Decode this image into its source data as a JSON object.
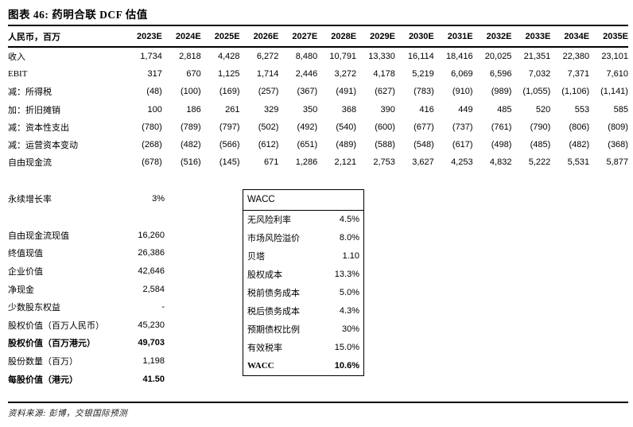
{
  "title": "图表 46: 药明合联 DCF 估值",
  "table": {
    "unit_label": "人民币，百万",
    "years": [
      "2023E",
      "2024E",
      "2025E",
      "2026E",
      "2027E",
      "2028E",
      "2029E",
      "2030E",
      "2031E",
      "2032E",
      "2033E",
      "2034E",
      "2035E"
    ],
    "rows": [
      {
        "label": "收入",
        "values": [
          "1,734",
          "2,818",
          "4,428",
          "6,272",
          "8,480",
          "10,791",
          "13,330",
          "16,114",
          "18,416",
          "20,025",
          "21,351",
          "22,380",
          "23,101"
        ]
      },
      {
        "label": "EBIT",
        "values": [
          "317",
          "670",
          "1,125",
          "1,714",
          "2,446",
          "3,272",
          "4,178",
          "5,219",
          "6,069",
          "6,596",
          "7,032",
          "7,371",
          "7,610"
        ]
      },
      {
        "label": "减：所得税",
        "values": [
          "(48)",
          "(100)",
          "(169)",
          "(257)",
          "(367)",
          "(491)",
          "(627)",
          "(783)",
          "(910)",
          "(989)",
          "(1,055)",
          "(1,106)",
          "(1,141)"
        ]
      },
      {
        "label": "加：折旧摊销",
        "values": [
          "100",
          "186",
          "261",
          "329",
          "350",
          "368",
          "390",
          "416",
          "449",
          "485",
          "520",
          "553",
          "585"
        ]
      },
      {
        "label": "减：资本性支出",
        "values": [
          "(780)",
          "(789)",
          "(797)",
          "(502)",
          "(492)",
          "(540)",
          "(600)",
          "(677)",
          "(737)",
          "(761)",
          "(790)",
          "(806)",
          "(809)"
        ]
      },
      {
        "label": "减：运营资本变动",
        "values": [
          "(268)",
          "(482)",
          "(566)",
          "(612)",
          "(651)",
          "(489)",
          "(588)",
          "(548)",
          "(617)",
          "(498)",
          "(485)",
          "(482)",
          "(368)"
        ]
      },
      {
        "label": "自由现金流",
        "values": [
          "(678)",
          "(516)",
          "(145)",
          "671",
          "1,286",
          "2,121",
          "2,753",
          "3,627",
          "4,253",
          "4,832",
          "5,222",
          "5,531",
          "5,877"
        ]
      }
    ]
  },
  "summary": {
    "growth": {
      "label": "永续增长率",
      "value": "3%"
    },
    "rows": [
      {
        "label": "自由现金流现值",
        "value": "16,260",
        "bold": false
      },
      {
        "label": "终值现值",
        "value": "26,386",
        "bold": false
      },
      {
        "label": "企业价值",
        "value": "42,646",
        "bold": false
      },
      {
        "label": "净现金",
        "value": "2,584",
        "bold": false
      },
      {
        "label": "少数股东权益",
        "value": "-",
        "bold": false
      },
      {
        "label": "股权价值（百万人民币）",
        "value": "45,230",
        "bold": false
      },
      {
        "label": "股权价值（百万港元）",
        "value": "49,703",
        "bold": true
      },
      {
        "label": "股份数量（百万）",
        "value": "1,198",
        "bold": false
      },
      {
        "label": "每股价值（港元）",
        "value": "41.50",
        "bold": true
      }
    ]
  },
  "wacc_box": {
    "header": "WACC",
    "rows": [
      {
        "label": "无风险利率",
        "value": "4.5%",
        "bold": false
      },
      {
        "label": "市场风险溢价",
        "value": "8.0%",
        "bold": false
      },
      {
        "label": "贝塔",
        "value": "1.10",
        "bold": false
      },
      {
        "label": "股权成本",
        "value": "13.3%",
        "bold": false
      },
      {
        "label": "税前债务成本",
        "value": "5.0%",
        "bold": false
      },
      {
        "label": "税后债务成本",
        "value": "4.3%",
        "bold": false
      },
      {
        "label": "预期债权比例",
        "value": "30%",
        "bold": false
      },
      {
        "label": "有效税率",
        "value": "15.0%",
        "bold": false
      },
      {
        "label": "WACC",
        "value": "10.6%",
        "bold": true
      }
    ]
  },
  "footer": {
    "source": "资料来源: 彭博，交银国际预测"
  }
}
